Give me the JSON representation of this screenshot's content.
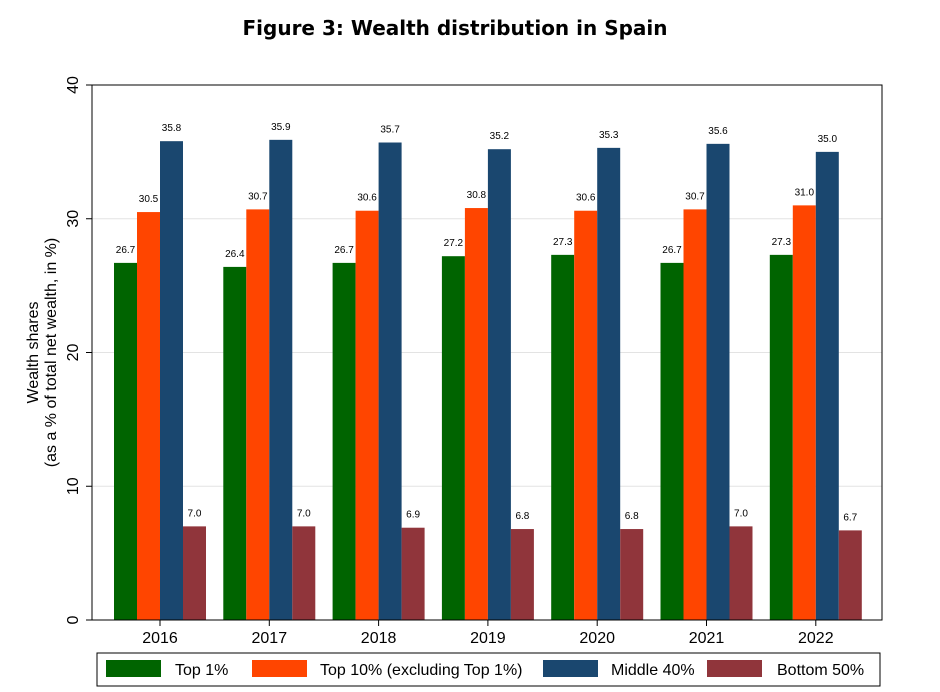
{
  "title": "Figure 3: Wealth distribution in Spain",
  "chart_data": {
    "type": "bar",
    "title": "Figure 3: Wealth distribution in Spain",
    "xlabel": "",
    "ylabel_lines": [
      "Wealth shares",
      "(as a % of total net wealth, in %)"
    ],
    "ylim": [
      0,
      40
    ],
    "yticks": [
      0,
      10,
      20,
      30,
      40
    ],
    "grid": true,
    "legend_position": "bottom",
    "categories": [
      "2016",
      "2017",
      "2018",
      "2019",
      "2020",
      "2021",
      "2022"
    ],
    "series": [
      {
        "name": "Top 1%",
        "color": "#006400",
        "values": [
          26.7,
          26.4,
          26.7,
          27.2,
          27.3,
          26.7,
          27.3
        ],
        "labels": [
          "26.7",
          "26.4",
          "26.7",
          "27.2",
          "27.3",
          "26.7",
          "27.3"
        ]
      },
      {
        "name": "Top 10% (excluding Top 1%)",
        "color": "#ff4500",
        "values": [
          30.5,
          30.7,
          30.6,
          30.8,
          30.6,
          30.7,
          31.0
        ],
        "labels": [
          "30.5",
          "30.7",
          "30.6",
          "30.8",
          "30.6",
          "30.7",
          "31.0"
        ]
      },
      {
        "name": "Middle 40%",
        "color": "#1a476f",
        "values": [
          35.8,
          35.9,
          35.7,
          35.2,
          35.3,
          35.6,
          35.0
        ],
        "labels": [
          "35.8",
          "35.9",
          "35.7",
          "35.2",
          "35.3",
          "35.6",
          "35.0"
        ]
      },
      {
        "name": "Bottom 50%",
        "color": "#90353b",
        "values": [
          7.0,
          7.0,
          6.9,
          6.8,
          6.8,
          7.0,
          6.7
        ],
        "labels": [
          "7.0",
          "7.0",
          "6.9",
          "6.8",
          "6.8",
          "7.0",
          "6.7"
        ]
      }
    ]
  }
}
